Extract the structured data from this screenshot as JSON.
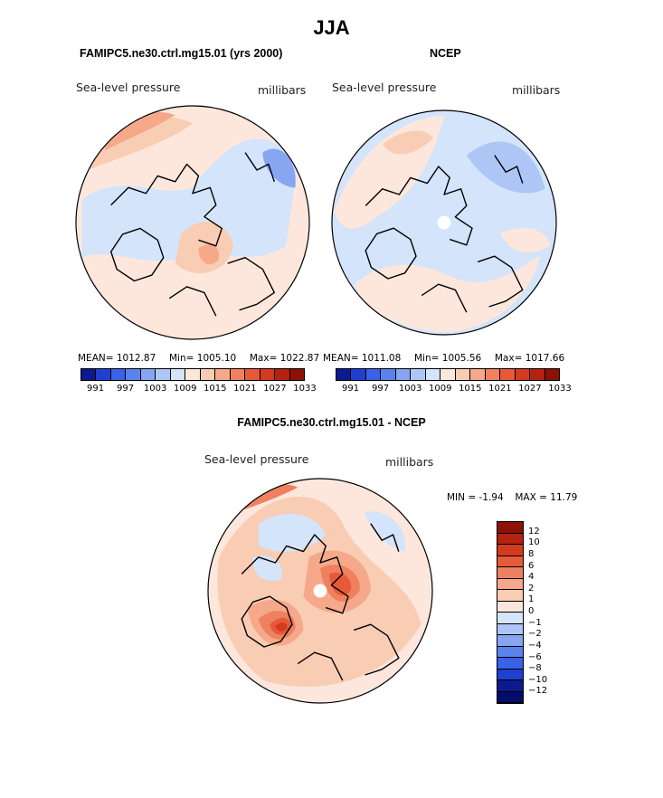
{
  "figure": {
    "title": "JJA",
    "variable_label": "Sea-level pressure",
    "units_label": "millibars"
  },
  "chart_data": [
    {
      "type": "heatmap",
      "projection": "north-polar-stereographic",
      "title": "FAMIPC5.ne30.ctrl.mg15.01 (yrs 2000)",
      "subtitle": "Sea-level pressure",
      "units": "millibars",
      "stats": {
        "mean_label": "MEAN=",
        "mean": "1012.87",
        "min_label": "Min=",
        "min": "1005.10",
        "max_label": "Max=",
        "max": "1022.87"
      },
      "colorbar": {
        "orientation": "horizontal",
        "tick_labels": [
          "991",
          "997",
          "1003",
          "1009",
          "1015",
          "1021",
          "1027",
          "1033"
        ],
        "colors": [
          "#0b1a8f",
          "#1f3fd0",
          "#3a62e6",
          "#5b83ee",
          "#86a6f2",
          "#aec6f6",
          "#d4e4fa",
          "#fde7dc",
          "#f9ccb4",
          "#f5a98a",
          "#ef8060",
          "#e65a3a",
          "#d33a1f",
          "#b5220f",
          "#8c1206"
        ]
      },
      "regions": [
        {
          "level": "1015",
          "color": "#fde7dc"
        },
        {
          "level": "1012",
          "color": "#d4e4fa"
        },
        {
          "level": "1018",
          "color": "#f9ccb4"
        },
        {
          "level": "1021",
          "color": "#f5a98a"
        },
        {
          "level": "1006",
          "color": "#86a6f2"
        }
      ]
    },
    {
      "type": "heatmap",
      "projection": "north-polar-stereographic",
      "title": "NCEP",
      "subtitle": "Sea-level pressure",
      "units": "millibars",
      "stats": {
        "mean_label": "MEAN=",
        "mean": "1011.08",
        "min_label": "Min=",
        "min": "1005.56",
        "max_label": "Max=",
        "max": "1017.66"
      },
      "colorbar": {
        "orientation": "horizontal",
        "tick_labels": [
          "991",
          "997",
          "1003",
          "1009",
          "1015",
          "1021",
          "1027",
          "1033"
        ],
        "colors": [
          "#0b1a8f",
          "#1f3fd0",
          "#3a62e6",
          "#5b83ee",
          "#86a6f2",
          "#aec6f6",
          "#d4e4fa",
          "#fde7dc",
          "#f9ccb4",
          "#f5a98a",
          "#ef8060",
          "#e65a3a",
          "#d33a1f",
          "#b5220f",
          "#8c1206"
        ]
      },
      "regions": [
        {
          "level": "1012",
          "color": "#d4e4fa"
        },
        {
          "level": "1015",
          "color": "#fde7dc"
        },
        {
          "level": "1018",
          "color": "#f9ccb4"
        },
        {
          "level": "1009",
          "color": "#aec6f6"
        }
      ]
    },
    {
      "type": "heatmap",
      "projection": "north-polar-stereographic",
      "title": "FAMIPC5.ne30.ctrl.mg15.01 - NCEP",
      "subtitle": "Sea-level pressure",
      "units": "millibars",
      "stats": {
        "min_label": "MIN =",
        "min": "-1.94",
        "max_label": "MAX =",
        "max": "11.79"
      },
      "colorbar": {
        "orientation": "vertical",
        "tick_labels": [
          "12",
          "10",
          "8",
          "6",
          "4",
          "2",
          "1",
          "0",
          "−1",
          "−2",
          "−4",
          "−6",
          "−8",
          "−10",
          "−12"
        ],
        "colors": [
          "#8c1206",
          "#b5220f",
          "#d33a1f",
          "#e65a3a",
          "#ef8060",
          "#f5a98a",
          "#f9ccb4",
          "#fde7dc",
          "#d4e4fa",
          "#aec6f6",
          "#86a6f2",
          "#5b83ee",
          "#3a62e6",
          "#1f3fd0",
          "#0b1a8f",
          "#050d6a"
        ]
      },
      "regions": [
        {
          "level": "1",
          "color": "#fde7dc"
        },
        {
          "level": "2",
          "color": "#f9ccb4"
        },
        {
          "level": "4",
          "color": "#f5a98a"
        },
        {
          "level": "-1",
          "color": "#d4e4fa"
        },
        {
          "level": "6",
          "color": "#ef8060"
        },
        {
          "level": "8",
          "color": "#e65a3a"
        },
        {
          "level": "10",
          "color": "#d33a1f"
        }
      ]
    }
  ]
}
